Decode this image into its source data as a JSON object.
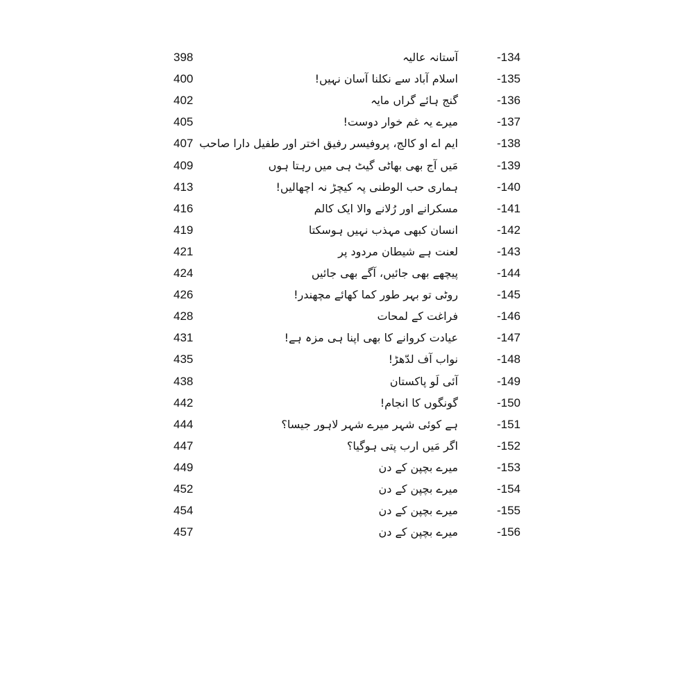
{
  "entries": [
    {
      "number": "-134",
      "title": "آستانہ عالیہ",
      "page": "398"
    },
    {
      "number": "-135",
      "title": "اسلام آباد سے نکلنا آسان نہیں!",
      "page": "400"
    },
    {
      "number": "-136",
      "title": "گنج ہائے گراں مایہ",
      "page": "402"
    },
    {
      "number": "-137",
      "title": "میرے یہ غم خوار دوست!",
      "page": "405"
    },
    {
      "number": "-138",
      "title": "ایم اے او کالج، پروفیسر رفیق اختر اور طفیل دارا صاحب",
      "page": "407"
    },
    {
      "number": "-139",
      "title": "مَیں آج بھی بھاٹی گیٹ ہی میں رہتا ہوں",
      "page": "409"
    },
    {
      "number": "-140",
      "title": "ہماری حب الوطنی پہ کیچڑ نہ اچھالیں!",
      "page": "413"
    },
    {
      "number": "-141",
      "title": "مسکرانے اور رُلانے والا ایک کالم",
      "page": "416"
    },
    {
      "number": "-142",
      "title": "انسان کبھی مہذب نہیں ہوسکتا",
      "page": "419"
    },
    {
      "number": "-143",
      "title": "لعنت ہے شیطان مردود پر",
      "page": "421"
    },
    {
      "number": "-144",
      "title": "پیچھے بھی جائیں، آگے بھی جائیں",
      "page": "424"
    },
    {
      "number": "-145",
      "title": "روٹی تو بہر طور کما کھائے مچھندر!",
      "page": "426"
    },
    {
      "number": "-146",
      "title": "فراغت کے لمحات",
      "page": "428"
    },
    {
      "number": "-147",
      "title": "عیادت کروانے کا بھی اپنا ہی مزہ ہے!",
      "page": "431"
    },
    {
      "number": "-148",
      "title": "نواب آف لدّھڑ!",
      "page": "435"
    },
    {
      "number": "-149",
      "title": "آئی لَو پاکستان",
      "page": "438"
    },
    {
      "number": "-150",
      "title": "گونگوں کا انجام!",
      "page": "442"
    },
    {
      "number": "-151",
      "title": "ہے کوئی شہر میرے شہر لاہور جیسا؟",
      "page": "444"
    },
    {
      "number": "-152",
      "title": "اگر مَیں ارب پتی ہوگیا؟",
      "page": "447"
    },
    {
      "number": "-153",
      "title": "میرے بچپن کے دن",
      "page": "449"
    },
    {
      "number": "-154",
      "title": "میرے بچپن کے دن",
      "page": "452"
    },
    {
      "number": "-155",
      "title": "میرے بچپن کے دن",
      "page": "454"
    },
    {
      "number": "-156",
      "title": "میرے بچپن کے دن",
      "page": "457"
    }
  ]
}
